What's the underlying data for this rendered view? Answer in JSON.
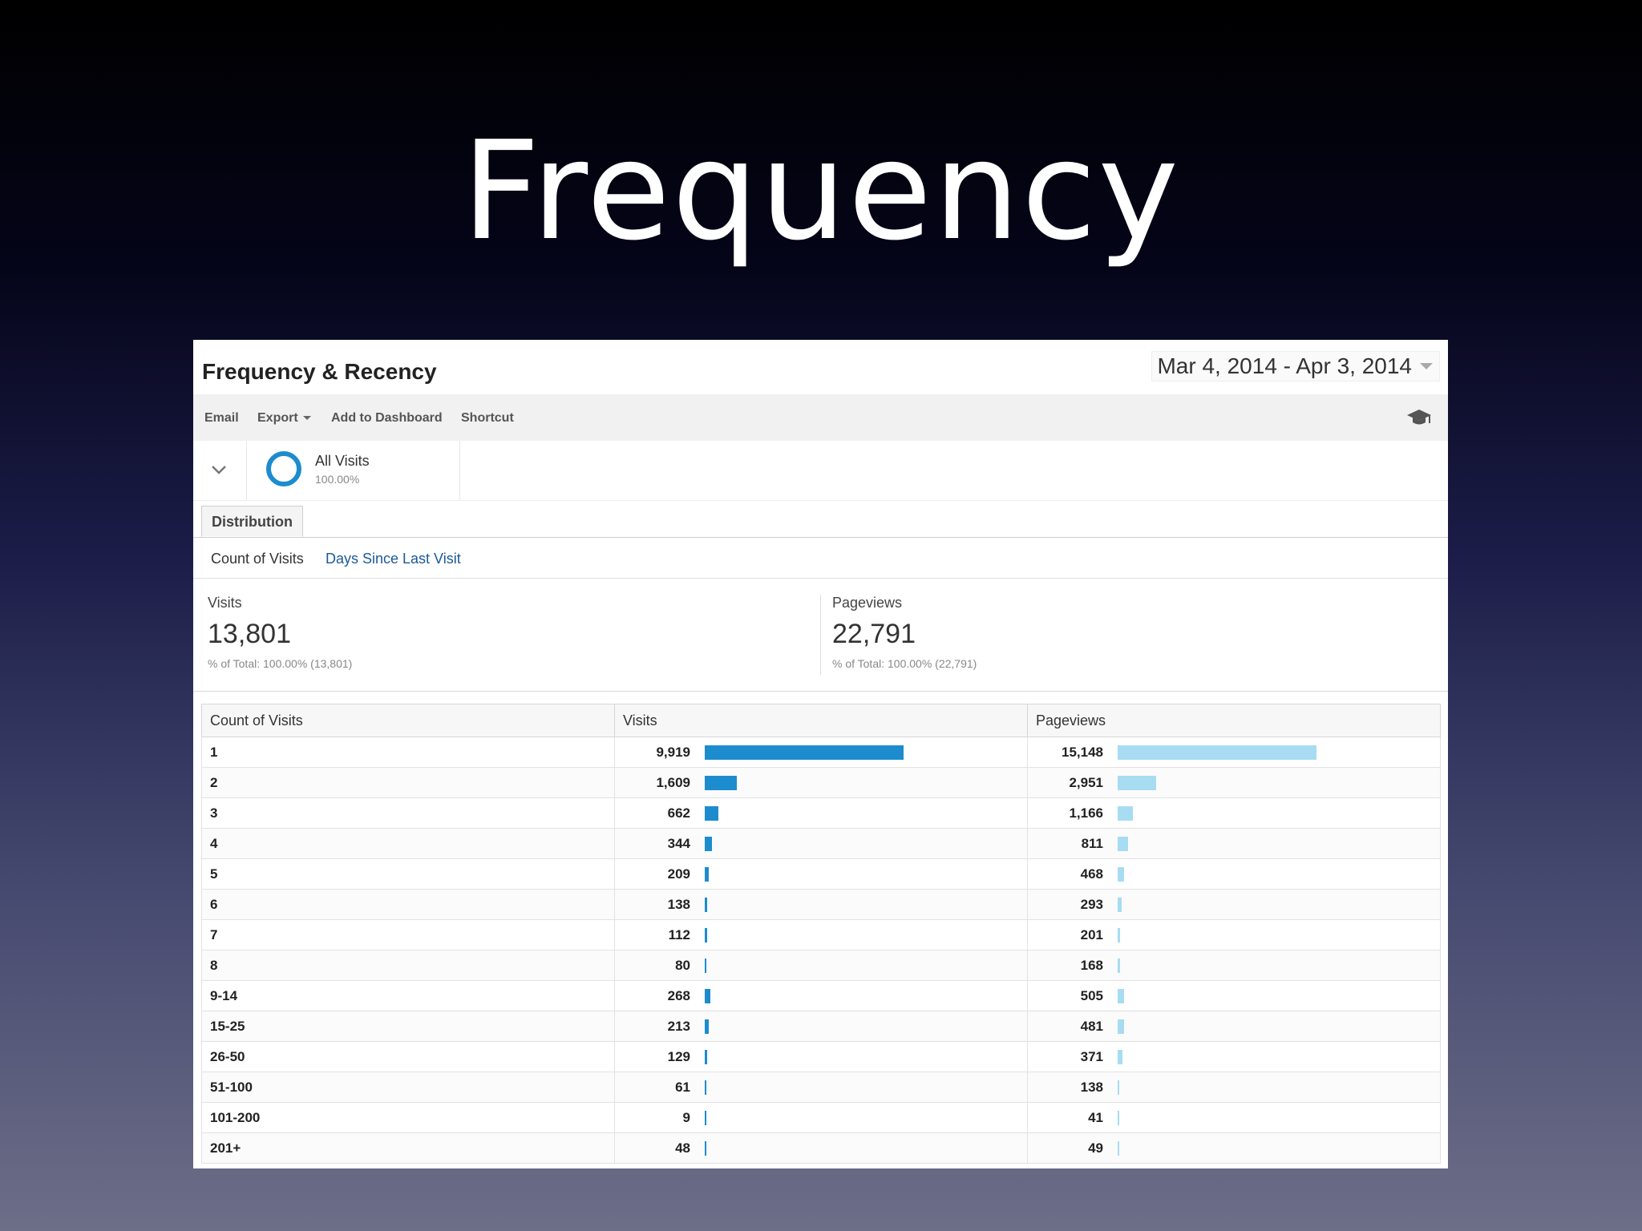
{
  "slide": {
    "title": "Frequency"
  },
  "report": {
    "title": "Frequency & Recency",
    "date_range": "Mar 4, 2014 - Apr 3, 2014"
  },
  "toolbar": {
    "email": "Email",
    "export": "Export",
    "add_to_dashboard": "Add to Dashboard",
    "shortcut": "Shortcut"
  },
  "segment": {
    "name": "All Visits",
    "percent": "100.00%"
  },
  "tabs": {
    "distribution": "Distribution"
  },
  "subnav": {
    "count_of_visits": "Count of Visits",
    "days_since_last_visit": "Days Since Last Visit"
  },
  "summary": {
    "visits": {
      "label": "Visits",
      "value": "13,801",
      "sub": "% of Total: 100.00% (13,801)"
    },
    "pageviews": {
      "label": "Pageviews",
      "value": "22,791",
      "sub": "% of Total: 100.00% (22,791)"
    }
  },
  "colors": {
    "visits_bar": "#1c8ccf",
    "pageviews_bar": "#a7dcf3",
    "segment_ring": "#1c8ccf",
    "link": "#1a5a99"
  },
  "table": {
    "headers": [
      "Count of Visits",
      "Visits",
      "Pageviews"
    ],
    "rows": [
      {
        "label": "1",
        "visits": "9,919",
        "pageviews": "15,148"
      },
      {
        "label": "2",
        "visits": "1,609",
        "pageviews": "2,951"
      },
      {
        "label": "3",
        "visits": "662",
        "pageviews": "1,166"
      },
      {
        "label": "4",
        "visits": "344",
        "pageviews": "811"
      },
      {
        "label": "5",
        "visits": "209",
        "pageviews": "468"
      },
      {
        "label": "6",
        "visits": "138",
        "pageviews": "293"
      },
      {
        "label": "7",
        "visits": "112",
        "pageviews": "201"
      },
      {
        "label": "8",
        "visits": "80",
        "pageviews": "168"
      },
      {
        "label": "9-14",
        "visits": "268",
        "pageviews": "505"
      },
      {
        "label": "15-25",
        "visits": "213",
        "pageviews": "481"
      },
      {
        "label": "26-50",
        "visits": "129",
        "pageviews": "371"
      },
      {
        "label": "51-100",
        "visits": "61",
        "pageviews": "138"
      },
      {
        "label": "101-200",
        "visits": "9",
        "pageviews": "41"
      },
      {
        "label": "201+",
        "visits": "48",
        "pageviews": "49"
      }
    ]
  }
}
